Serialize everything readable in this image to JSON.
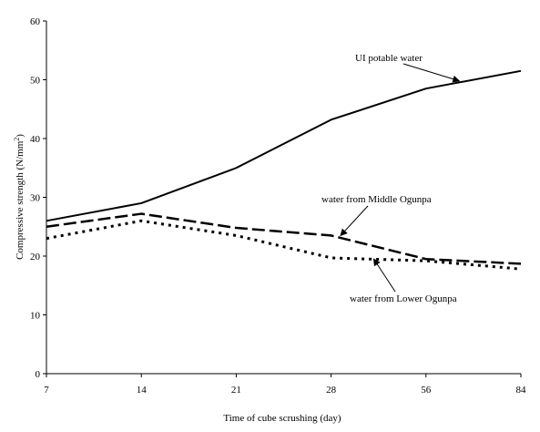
{
  "chart_data": {
    "type": "line",
    "title": "",
    "xlabel": "Time of cube scrushing (day)",
    "ylabel_main": "Compressive strength (N/mm",
    "ylabel_sup": "2",
    "ylabel_close": ")",
    "categories": [
      "7",
      "14",
      "21",
      "28",
      "56",
      "84"
    ],
    "ylim": [
      0,
      60
    ],
    "yticks": [
      "0",
      "10",
      "20",
      "30",
      "40",
      "50",
      "60"
    ],
    "yticks_values": [
      0,
      10,
      20,
      30,
      40,
      50,
      60
    ],
    "grid": false,
    "legend": "none (annotations with arrows)",
    "series": [
      {
        "values": [
          26,
          29,
          35,
          43.2,
          48.5,
          51.5
        ],
        "style": "solid",
        "color": "#000000"
      },
      {
        "values": [
          25,
          27.2,
          24.8,
          23.5,
          19.5,
          18.7
        ],
        "style": "dashed",
        "color": "#000000"
      },
      {
        "values": [
          23,
          26,
          23.5,
          19.7,
          19.2,
          17.8
        ],
        "style": "dotted",
        "color": "#000000"
      }
    ],
    "annotations": [
      {
        "text": "UI potable water",
        "target_series": 0,
        "target_x_index": 4.35,
        "target_y": 49.8
      },
      {
        "text": "water from Middle Ogunpa",
        "target_series": 1,
        "target_x_index": 3.1,
        "target_y": 23.5
      },
      {
        "text": "water from Lower Ogunpa",
        "target_series": 2,
        "target_x_index": 3.45,
        "target_y": 19.5
      }
    ]
  }
}
